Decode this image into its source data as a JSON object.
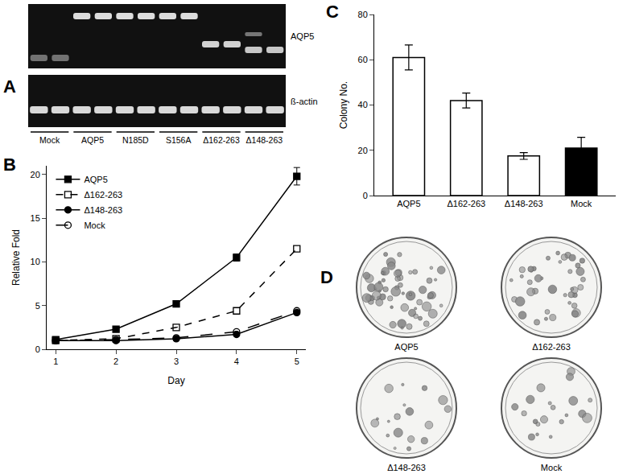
{
  "chart_data": [
    {
      "panel_label": "B",
      "type": "line",
      "x": [
        1,
        2,
        3,
        4,
        5
      ],
      "xlabel": "Day",
      "ylabel": "Relative Fold",
      "xlim": [
        0.85,
        5.15
      ],
      "ylim": [
        0,
        21
      ],
      "xticks": [
        1,
        2,
        3,
        4,
        5
      ],
      "yticks": [
        0,
        5,
        10,
        15,
        20
      ],
      "legend": "upper left",
      "series": [
        {
          "name": "AQP5",
          "color": "#000000",
          "marker": "square",
          "line_style": "solid",
          "values": [
            1.1,
            2.3,
            5.2,
            10.5,
            19.8
          ],
          "errors": [
            0.1,
            0.2,
            0.3,
            0.4,
            1.0
          ]
        },
        {
          "name": "Δ162-263",
          "color": "#000000",
          "marker": "square-open",
          "line_style": "dash",
          "values": [
            1.0,
            1.2,
            2.5,
            4.4,
            11.5
          ]
        },
        {
          "name": "Δ148-263",
          "color": "#000000",
          "marker": "circle",
          "line_style": "solid",
          "values": [
            1.0,
            1.0,
            1.2,
            1.7,
            4.2
          ]
        },
        {
          "name": "Mock",
          "color": "#000000",
          "marker": "circle-open",
          "line_style": "longdash",
          "values": [
            1.0,
            1.1,
            1.3,
            2.0,
            4.4
          ]
        }
      ]
    },
    {
      "panel_label": "C",
      "type": "bar",
      "categories": [
        "AQP5",
        "Δ162-263",
        "Δ148-263",
        "Mock"
      ],
      "values": [
        61,
        42,
        17.5,
        21
      ],
      "errors": [
        5.5,
        3.3,
        1.5,
        4.7
      ],
      "colors": [
        "#ffffff",
        "#ffffff",
        "#ffffff",
        "#000000"
      ],
      "ylabel": "Colony No.",
      "ylim": [
        0,
        80
      ],
      "yticks": [
        0,
        20,
        40,
        60,
        80
      ]
    }
  ],
  "gel": {
    "panel_label": "A",
    "rows": [
      "AQP5",
      "ß-actin"
    ],
    "lanes": [
      "Mock",
      "AQP5",
      "N185D",
      "S156A",
      "Δ162-263",
      "Δ148-263"
    ]
  },
  "colony_images": {
    "panel_label": "D",
    "plates": [
      "AQP5",
      "Δ162-263",
      "Δ148-263",
      "Mock"
    ]
  }
}
